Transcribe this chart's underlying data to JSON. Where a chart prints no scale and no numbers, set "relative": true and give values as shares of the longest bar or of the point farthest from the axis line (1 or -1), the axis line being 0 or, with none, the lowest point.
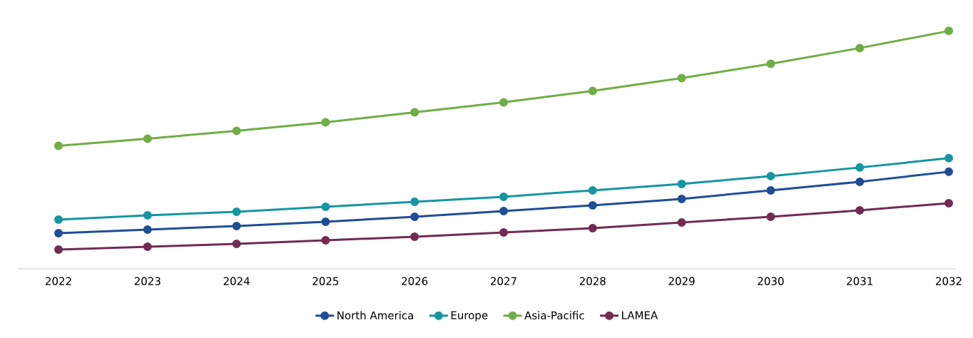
{
  "chart_data": {
    "type": "line",
    "relative": true,
    "legend": "bottom",
    "marker": "circle",
    "line_style": "solid",
    "categories": [
      "2022",
      "2023",
      "2024",
      "2025",
      "2026",
      "2027",
      "2028",
      "2029",
      "2030",
      "2031",
      "2032"
    ],
    "series": [
      {
        "name": "North America",
        "color": "#1f4e96",
        "values": [
          0.15,
          0.165,
          0.18,
          0.198,
          0.219,
          0.243,
          0.267,
          0.294,
          0.33,
          0.366,
          0.408
        ]
      },
      {
        "name": "Europe",
        "color": "#1596a0",
        "values": [
          0.207,
          0.225,
          0.24,
          0.261,
          0.282,
          0.303,
          0.33,
          0.357,
          0.39,
          0.426,
          0.465
        ]
      },
      {
        "name": "Asia-Pacific",
        "color": "#70ad47",
        "values": [
          0.517,
          0.547,
          0.58,
          0.616,
          0.658,
          0.7,
          0.748,
          0.802,
          0.862,
          0.928,
          1.0
        ]
      },
      {
        "name": "LAMEA",
        "color": "#722b52",
        "values": [
          0.081,
          0.093,
          0.105,
          0.12,
          0.135,
          0.153,
          0.171,
          0.195,
          0.219,
          0.246,
          0.276
        ]
      }
    ]
  }
}
